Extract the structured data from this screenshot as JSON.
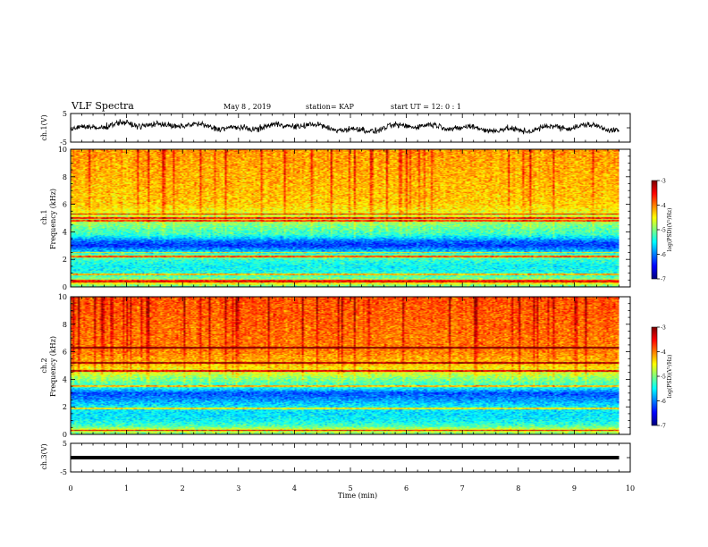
{
  "header": {
    "title": "VLF Spectra",
    "date": "May 8  , 2019",
    "station": "station= KAP",
    "start": "start  UT  =   12: 0   : 1"
  },
  "colorbar": {
    "label": "log(PSD)(V²/Hz)",
    "ticks": [
      "-3",
      "-4",
      "-5",
      "-6",
      "-7"
    ]
  },
  "chart_data": [
    {
      "type": "line",
      "title": "",
      "xlabel": "",
      "ylabel": "ch.1(V)",
      "ylim": [
        -5,
        5
      ],
      "yticks": [
        "5",
        "-5"
      ],
      "xlim": [
        0,
        10
      ],
      "series": [
        {
          "x": [
            0,
            0.5,
            1.0,
            1.5,
            2.0,
            2.5,
            3.0,
            3.5,
            4.0,
            4.5,
            5.0,
            5.5,
            6.0,
            6.5,
            7.0,
            7.5,
            8.0,
            8.5,
            9.0,
            9.5,
            9.8
          ],
          "values": [
            -0.5,
            0.5,
            1.5,
            0.8,
            1.0,
            0.5,
            -0.5,
            0.5,
            1.0,
            0.5,
            -1.0,
            -0.5,
            1.0,
            0.5,
            0.0,
            -0.5,
            -1.0,
            0.0,
            0.5,
            0.5,
            -1.0
          ]
        }
      ]
    },
    {
      "type": "heatmap",
      "title": "",
      "xlabel": "",
      "ylabel": "ch.1",
      "ylabel2": "Frequency  (kHz)",
      "ylim": [
        0,
        10
      ],
      "yticks": [
        "0",
        "2",
        "4",
        "6",
        "8",
        "10"
      ],
      "xlim": [
        0,
        10
      ],
      "x_end": 9.8,
      "zlim": [
        -7,
        -3
      ],
      "profile": [
        {
          "f": 0.0,
          "z": -5.2
        },
        {
          "f": 0.3,
          "z": -4.4
        },
        {
          "f": 0.6,
          "z": -5.0
        },
        {
          "f": 1.0,
          "z": -5.4
        },
        {
          "f": 1.5,
          "z": -5.5
        },
        {
          "f": 2.0,
          "z": -5.3
        },
        {
          "f": 2.2,
          "z": -4.8
        },
        {
          "f": 2.5,
          "z": -5.6
        },
        {
          "f": 3.0,
          "z": -6.3
        },
        {
          "f": 3.3,
          "z": -6.1
        },
        {
          "f": 3.8,
          "z": -5.3
        },
        {
          "f": 4.3,
          "z": -5.1
        },
        {
          "f": 5.0,
          "z": -4.7
        },
        {
          "f": 5.5,
          "z": -4.5
        },
        {
          "f": 6.0,
          "z": -4.3
        },
        {
          "f": 8.0,
          "z": -4.2
        },
        {
          "f": 10.0,
          "z": -4.1
        }
      ],
      "lines_khz": [
        0.4,
        0.5,
        0.9,
        2.2,
        2.5,
        4.8,
        5.0,
        5.3
      ]
    },
    {
      "type": "heatmap",
      "title": "",
      "xlabel": "",
      "ylabel": "ch.2",
      "ylabel2": "Frequency  (kHz)",
      "ylim": [
        0,
        10
      ],
      "yticks": [
        "0",
        "2",
        "4",
        "6",
        "8",
        "10"
      ],
      "xlim": [
        0,
        10
      ],
      "x_end": 9.8,
      "zlim": [
        -7,
        -3
      ],
      "profile": [
        {
          "f": 0.0,
          "z": -5.1
        },
        {
          "f": 0.3,
          "z": -4.5
        },
        {
          "f": 0.6,
          "z": -5.2
        },
        {
          "f": 1.0,
          "z": -5.5
        },
        {
          "f": 1.5,
          "z": -5.6
        },
        {
          "f": 2.0,
          "z": -5.5
        },
        {
          "f": 2.5,
          "z": -5.9
        },
        {
          "f": 3.0,
          "z": -6.2
        },
        {
          "f": 3.4,
          "z": -5.4
        },
        {
          "f": 4.0,
          "z": -5.0
        },
        {
          "f": 4.5,
          "z": -4.6
        },
        {
          "f": 5.0,
          "z": -4.3
        },
        {
          "f": 6.0,
          "z": -4.0
        },
        {
          "f": 8.0,
          "z": -3.9
        },
        {
          "f": 10.0,
          "z": -3.8
        }
      ],
      "lines_khz": [
        0.3,
        1.9,
        3.5,
        4.6,
        5.2,
        6.3
      ]
    },
    {
      "type": "line",
      "title": "",
      "xlabel": "Time  (min)",
      "ylabel": "ch.3(V)",
      "ylim": [
        -5,
        5
      ],
      "yticks": [
        "5",
        "-5"
      ],
      "xlim": [
        0,
        10
      ],
      "xticks": [
        "0",
        "1",
        "2",
        "3",
        "4",
        "5",
        "6",
        "7",
        "8",
        "9",
        "10"
      ],
      "series": [
        {
          "x": [
            0,
            9.8
          ],
          "values": [
            0,
            0
          ]
        }
      ]
    }
  ]
}
